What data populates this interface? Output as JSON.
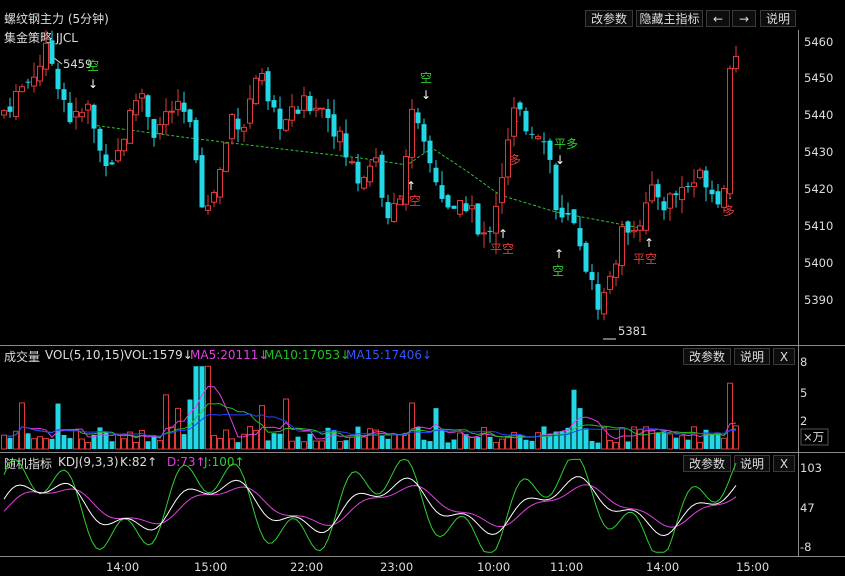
{
  "main": {
    "title": "螺纹钢主力 (5分钟)",
    "strategy": "集金策略 JJCL",
    "buttons": {
      "params": "改参数",
      "hide_main": "隐藏主指标",
      "left_arrow": "←",
      "right_arrow": "→",
      "help": "说明"
    },
    "price_ticks": [
      "5460",
      "5450",
      "5440",
      "5430",
      "5420",
      "5410",
      "5400",
      "5390"
    ],
    "high_label": "5459",
    "low_label": "5381",
    "signals": [
      "空",
      "空",
      "多",
      "平多",
      "平空",
      "平空",
      "空",
      "平空",
      "多"
    ]
  },
  "volume": {
    "label": "成交量",
    "indicator": "VOL(5,10,15)",
    "vol": "VOL:1579↓",
    "ma5": "MA5:20111↓",
    "ma10": "MA10:17053↓",
    "ma15": "MA15:17406↓",
    "buttons": {
      "params": "改参数",
      "help": "说明",
      "close": "X"
    },
    "ticks": [
      "8",
      "5",
      "2"
    ],
    "unit": "×万"
  },
  "kdj": {
    "label": "随机指标",
    "indicator": "KDJ(9,3,3)",
    "k": "K:82↑",
    "d": "D:73↑",
    "j": "J:100↑",
    "buttons": {
      "params": "改参数",
      "help": "说明",
      "close": "X"
    },
    "ticks": [
      "103",
      "47",
      "-8"
    ]
  },
  "time_axis": [
    "14:00",
    "15:00",
    "22:00",
    "23:00",
    "10:00",
    "11:00",
    "14:00",
    "15:00"
  ],
  "colors": {
    "up": "#e23a3a",
    "down": "#22d8e6",
    "ma5": "#e040e0",
    "ma10": "#22c022",
    "ma15": "#2244ff",
    "k": "#ffffff",
    "d": "#e040e0",
    "j": "#30d030"
  }
}
